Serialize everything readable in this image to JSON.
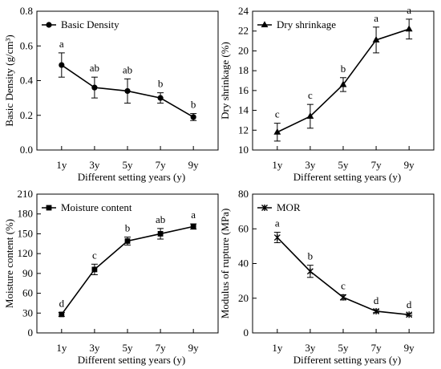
{
  "chart_data": [
    {
      "type": "line",
      "categories": [
        "1y",
        "3y",
        "5y",
        "7y",
        "9y"
      ],
      "series": [
        {
          "name": "Basic Density",
          "marker": "circle",
          "values": [
            0.49,
            0.36,
            0.34,
            0.3,
            0.19
          ],
          "errors": [
            0.07,
            0.06,
            0.07,
            0.03,
            0.02
          ]
        }
      ],
      "letters": [
        "a",
        "ab",
        "ab",
        "b",
        "b"
      ],
      "xlabel": "Different setting years (y)",
      "ylabel": "Basic Density (g/cm³)",
      "ylim": [
        0.0,
        0.8
      ],
      "yticks": [
        0.0,
        0.2,
        0.4,
        0.6,
        0.8
      ],
      "ytick_labels": [
        "0.0",
        "0.2",
        "0.4",
        "0.6",
        "0.8"
      ],
      "legend": "top-left",
      "grid": false
    },
    {
      "type": "line",
      "categories": [
        "1y",
        "3y",
        "5y",
        "7y",
        "9y"
      ],
      "series": [
        {
          "name": "Dry shrinkage",
          "marker": "triangle",
          "values": [
            11.8,
            13.4,
            16.6,
            21.1,
            22.2
          ],
          "errors": [
            0.9,
            1.2,
            0.7,
            1.3,
            1.0
          ]
        }
      ],
      "letters": [
        "c",
        "c",
        "b",
        "a",
        "a"
      ],
      "xlabel": "Different setting years (y)",
      "ylabel": "Dry shrinkage (%)",
      "ylim": [
        10,
        24
      ],
      "yticks": [
        10,
        12,
        14,
        16,
        18,
        20,
        22,
        24
      ],
      "ytick_labels": [
        "10",
        "12",
        "14",
        "16",
        "18",
        "20",
        "22",
        "24"
      ],
      "legend": "top-left",
      "grid": false
    },
    {
      "type": "line",
      "categories": [
        "1y",
        "3y",
        "5y",
        "7y",
        "9y"
      ],
      "series": [
        {
          "name": "Moisture content",
          "marker": "square",
          "values": [
            28,
            96,
            139,
            150,
            161
          ],
          "errors": [
            3,
            8,
            6,
            8,
            4
          ]
        }
      ],
      "letters": [
        "d",
        "c",
        "b",
        "ab",
        "a"
      ],
      "xlabel": "Different setting years (y)",
      "ylabel": "Moisture content (%)",
      "ylim": [
        0,
        210
      ],
      "yticks": [
        0,
        30,
        60,
        90,
        120,
        150,
        180,
        210
      ],
      "ytick_labels": [
        "0",
        "30",
        "60",
        "90",
        "120",
        "150",
        "180",
        "210"
      ],
      "legend": "top-left",
      "grid": false
    },
    {
      "type": "line",
      "categories": [
        "1y",
        "3y",
        "5y",
        "7y",
        "9y"
      ],
      "series": [
        {
          "name": "MOR",
          "marker": "x",
          "values": [
            55,
            35.5,
            20.5,
            12.5,
            10.5
          ],
          "errors": [
            3,
            3.5,
            1.5,
            0.8,
            0.5
          ]
        }
      ],
      "letters": [
        "a",
        "b",
        "c",
        "d",
        "d"
      ],
      "xlabel": "Different setting years (y)",
      "ylabel": "Modulus of rupture (MPa)",
      "ylim": [
        0,
        80
      ],
      "yticks": [
        0,
        20,
        40,
        60,
        80
      ],
      "ytick_labels": [
        "0",
        "20",
        "40",
        "60",
        "80"
      ],
      "legend": "top-left",
      "grid": false
    }
  ]
}
